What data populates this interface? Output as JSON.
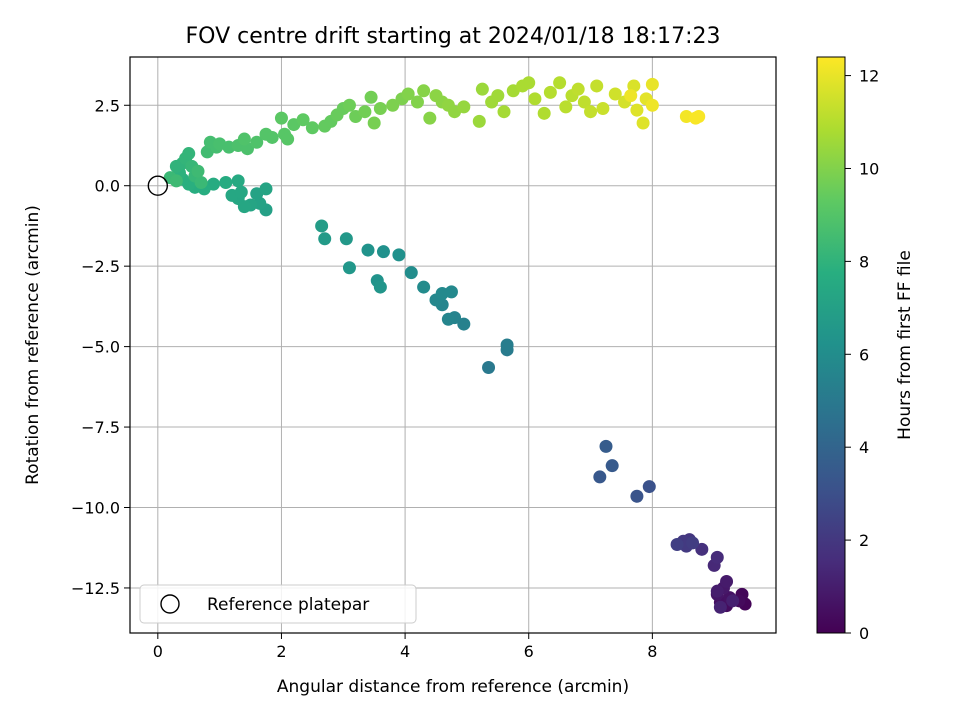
{
  "chart_data": {
    "type": "scatter",
    "title": "FOV centre drift starting at 2024/01/18 18:17:23",
    "xlabel": "Angular distance from reference (arcmin)",
    "ylabel": "Rotation from reference (arcmin)",
    "xlim": [
      -0.45,
      10.0
    ],
    "ylim": [
      -13.9,
      4.0
    ],
    "x_ticks": [
      0,
      2,
      4,
      6,
      8
    ],
    "y_ticks": [
      2.5,
      0.0,
      -2.5,
      -5.0,
      -7.5,
      -10.0,
      -12.5
    ],
    "x_tick_labels": [
      "0",
      "2",
      "4",
      "6",
      "8"
    ],
    "y_tick_labels": [
      "2.5",
      "0.0",
      "−2.5",
      "−5.0",
      "−7.5",
      "−10.0",
      "−12.5"
    ],
    "grid": true,
    "colormap": "viridis",
    "colorbar": {
      "label": "Hours from first FF file",
      "range": [
        0,
        12.4
      ],
      "ticks": [
        0,
        2,
        4,
        6,
        8,
        10,
        12
      ],
      "tick_labels": [
        "0",
        "2",
        "4",
        "6",
        "8",
        "10",
        "12"
      ]
    },
    "legend": {
      "placement": "lower-left",
      "entries": [
        {
          "label": "Reference platepar",
          "marker": "open-circle"
        }
      ]
    },
    "reference_point": {
      "x": 0,
      "y": 0
    },
    "points": [
      {
        "x": 9.5,
        "y": -13.0,
        "t": 0.1
      },
      {
        "x": 9.45,
        "y": -12.7,
        "t": 0.2
      },
      {
        "x": 9.4,
        "y": -12.9,
        "t": 0.3
      },
      {
        "x": 9.2,
        "y": -13.05,
        "t": 0.4
      },
      {
        "x": 9.1,
        "y": -12.95,
        "t": 0.5
      },
      {
        "x": 9.25,
        "y": -12.8,
        "t": 0.6
      },
      {
        "x": 9.05,
        "y": -12.7,
        "t": 0.7
      },
      {
        "x": 9.15,
        "y": -12.5,
        "t": 0.8
      },
      {
        "x": 9.2,
        "y": -12.3,
        "t": 0.9
      },
      {
        "x": 9.05,
        "y": -12.6,
        "t": 1.0
      },
      {
        "x": 9.3,
        "y": -12.9,
        "t": 1.1
      },
      {
        "x": 9.1,
        "y": -13.1,
        "t": 1.2
      },
      {
        "x": 9.0,
        "y": -11.8,
        "t": 1.4
      },
      {
        "x": 9.05,
        "y": -11.55,
        "t": 1.5
      },
      {
        "x": 8.8,
        "y": -11.3,
        "t": 1.7
      },
      {
        "x": 8.6,
        "y": -11.0,
        "t": 1.9
      },
      {
        "x": 8.5,
        "y": -11.05,
        "t": 2.0
      },
      {
        "x": 8.55,
        "y": -11.2,
        "t": 2.1
      },
      {
        "x": 8.65,
        "y": -11.1,
        "t": 2.2
      },
      {
        "x": 8.4,
        "y": -11.15,
        "t": 2.3
      },
      {
        "x": 7.95,
        "y": -9.35,
        "t": 3.1
      },
      {
        "x": 7.75,
        "y": -9.65,
        "t": 3.2
      },
      {
        "x": 7.15,
        "y": -9.05,
        "t": 3.4
      },
      {
        "x": 7.35,
        "y": -8.7,
        "t": 3.5
      },
      {
        "x": 7.25,
        "y": -8.1,
        "t": 3.6
      },
      {
        "x": 5.35,
        "y": -5.65,
        "t": 5.0
      },
      {
        "x": 5.65,
        "y": -5.1,
        "t": 5.1
      },
      {
        "x": 5.65,
        "y": -4.95,
        "t": 5.2
      },
      {
        "x": 4.95,
        "y": -4.3,
        "t": 5.4
      },
      {
        "x": 4.8,
        "y": -4.1,
        "t": 5.5
      },
      {
        "x": 4.7,
        "y": -4.15,
        "t": 5.6
      },
      {
        "x": 4.6,
        "y": -3.7,
        "t": 5.6
      },
      {
        "x": 4.5,
        "y": -3.55,
        "t": 5.7
      },
      {
        "x": 4.6,
        "y": -3.35,
        "t": 5.8
      },
      {
        "x": 4.75,
        "y": -3.3,
        "t": 5.8
      },
      {
        "x": 4.3,
        "y": -3.15,
        "t": 5.9
      },
      {
        "x": 4.1,
        "y": -2.7,
        "t": 6.0
      },
      {
        "x": 3.9,
        "y": -2.15,
        "t": 6.2
      },
      {
        "x": 3.65,
        "y": -2.05,
        "t": 6.2
      },
      {
        "x": 3.4,
        "y": -2.0,
        "t": 6.3
      },
      {
        "x": 3.55,
        "y": -2.95,
        "t": 6.3
      },
      {
        "x": 3.6,
        "y": -3.15,
        "t": 6.4
      },
      {
        "x": 3.1,
        "y": -2.55,
        "t": 6.5
      },
      {
        "x": 3.05,
        "y": -1.65,
        "t": 6.6
      },
      {
        "x": 2.7,
        "y": -1.65,
        "t": 6.7
      },
      {
        "x": 2.65,
        "y": -1.25,
        "t": 6.8
      },
      {
        "x": 1.75,
        "y": -0.75,
        "t": 7.0
      },
      {
        "x": 1.65,
        "y": -0.55,
        "t": 7.1
      },
      {
        "x": 1.6,
        "y": -0.25,
        "t": 7.1
      },
      {
        "x": 1.75,
        "y": -0.1,
        "t": 7.2
      },
      {
        "x": 1.5,
        "y": -0.6,
        "t": 7.2
      },
      {
        "x": 1.4,
        "y": -0.65,
        "t": 7.3
      },
      {
        "x": 1.3,
        "y": -0.4,
        "t": 7.3
      },
      {
        "x": 1.2,
        "y": -0.3,
        "t": 7.4
      },
      {
        "x": 1.35,
        "y": -0.2,
        "t": 7.4
      },
      {
        "x": 1.3,
        "y": 0.15,
        "t": 7.5
      },
      {
        "x": 1.1,
        "y": 0.1,
        "t": 7.6
      },
      {
        "x": 0.9,
        "y": 0.05,
        "t": 7.6
      },
      {
        "x": 0.75,
        "y": -0.1,
        "t": 7.7
      },
      {
        "x": 0.6,
        "y": -0.05,
        "t": 7.7
      },
      {
        "x": 0.5,
        "y": 0.05,
        "t": 7.8
      },
      {
        "x": 0.4,
        "y": 0.2,
        "t": 7.8
      },
      {
        "x": 0.35,
        "y": 0.4,
        "t": 7.9
      },
      {
        "x": 0.3,
        "y": 0.6,
        "t": 8.0
      },
      {
        "x": 0.4,
        "y": 0.7,
        "t": 8.0
      },
      {
        "x": 0.45,
        "y": 0.85,
        "t": 8.1
      },
      {
        "x": 0.5,
        "y": 1.0,
        "t": 8.1
      },
      {
        "x": 0.55,
        "y": 0.6,
        "t": 8.2
      },
      {
        "x": 0.6,
        "y": 0.3,
        "t": 8.2
      },
      {
        "x": 0.7,
        "y": 0.1,
        "t": 8.3
      },
      {
        "x": 0.2,
        "y": 0.25,
        "t": 8.3
      },
      {
        "x": 0.3,
        "y": 0.15,
        "t": 8.4
      },
      {
        "x": 0.65,
        "y": 0.45,
        "t": 8.4
      },
      {
        "x": 0.8,
        "y": 1.05,
        "t": 8.5
      },
      {
        "x": 0.95,
        "y": 1.2,
        "t": 8.6
      },
      {
        "x": 0.85,
        "y": 1.35,
        "t": 8.6
      },
      {
        "x": 1.0,
        "y": 1.3,
        "t": 8.7
      },
      {
        "x": 1.15,
        "y": 1.2,
        "t": 8.7
      },
      {
        "x": 1.3,
        "y": 1.25,
        "t": 8.8
      },
      {
        "x": 1.45,
        "y": 1.15,
        "t": 8.8
      },
      {
        "x": 1.4,
        "y": 1.45,
        "t": 8.9
      },
      {
        "x": 1.6,
        "y": 1.35,
        "t": 8.9
      },
      {
        "x": 1.75,
        "y": 1.6,
        "t": 9.0
      },
      {
        "x": 1.85,
        "y": 1.5,
        "t": 9.0
      },
      {
        "x": 2.05,
        "y": 1.6,
        "t": 9.1
      },
      {
        "x": 2.1,
        "y": 1.45,
        "t": 9.1
      },
      {
        "x": 2.0,
        "y": 2.1,
        "t": 9.2
      },
      {
        "x": 2.2,
        "y": 1.9,
        "t": 9.2
      },
      {
        "x": 2.35,
        "y": 2.05,
        "t": 9.3
      },
      {
        "x": 2.5,
        "y": 1.8,
        "t": 9.3
      },
      {
        "x": 2.7,
        "y": 1.85,
        "t": 9.4
      },
      {
        "x": 2.8,
        "y": 2.0,
        "t": 9.4
      },
      {
        "x": 2.9,
        "y": 2.2,
        "t": 9.5
      },
      {
        "x": 3.0,
        "y": 2.4,
        "t": 9.5
      },
      {
        "x": 3.1,
        "y": 2.5,
        "t": 9.6
      },
      {
        "x": 3.2,
        "y": 2.15,
        "t": 9.6
      },
      {
        "x": 3.35,
        "y": 2.3,
        "t": 9.7
      },
      {
        "x": 3.45,
        "y": 2.75,
        "t": 9.7
      },
      {
        "x": 3.5,
        "y": 1.95,
        "t": 9.8
      },
      {
        "x": 3.6,
        "y": 2.4,
        "t": 9.8
      },
      {
        "x": 3.8,
        "y": 2.5,
        "t": 9.9
      },
      {
        "x": 3.95,
        "y": 2.7,
        "t": 9.9
      },
      {
        "x": 4.05,
        "y": 2.85,
        "t": 10.0
      },
      {
        "x": 4.2,
        "y": 2.6,
        "t": 10.0
      },
      {
        "x": 4.3,
        "y": 2.95,
        "t": 10.1
      },
      {
        "x": 4.4,
        "y": 2.1,
        "t": 10.1
      },
      {
        "x": 4.5,
        "y": 2.8,
        "t": 10.2
      },
      {
        "x": 4.6,
        "y": 2.6,
        "t": 10.2
      },
      {
        "x": 4.7,
        "y": 2.5,
        "t": 10.3
      },
      {
        "x": 4.8,
        "y": 2.3,
        "t": 10.3
      },
      {
        "x": 4.95,
        "y": 2.45,
        "t": 10.4
      },
      {
        "x": 5.2,
        "y": 2.0,
        "t": 10.5
      },
      {
        "x": 5.25,
        "y": 3.0,
        "t": 10.5
      },
      {
        "x": 5.4,
        "y": 2.6,
        "t": 10.6
      },
      {
        "x": 5.5,
        "y": 2.8,
        "t": 10.6
      },
      {
        "x": 5.6,
        "y": 2.3,
        "t": 10.7
      },
      {
        "x": 5.75,
        "y": 2.95,
        "t": 10.7
      },
      {
        "x": 5.9,
        "y": 3.1,
        "t": 10.8
      },
      {
        "x": 6.0,
        "y": 3.2,
        "t": 10.8
      },
      {
        "x": 6.1,
        "y": 2.7,
        "t": 10.9
      },
      {
        "x": 6.25,
        "y": 2.25,
        "t": 10.9
      },
      {
        "x": 6.35,
        "y": 2.9,
        "t": 11.0
      },
      {
        "x": 6.5,
        "y": 3.2,
        "t": 11.0
      },
      {
        "x": 6.6,
        "y": 2.45,
        "t": 11.1
      },
      {
        "x": 6.7,
        "y": 2.8,
        "t": 11.1
      },
      {
        "x": 6.8,
        "y": 3.0,
        "t": 11.2
      },
      {
        "x": 6.9,
        "y": 2.6,
        "t": 11.2
      },
      {
        "x": 7.0,
        "y": 2.3,
        "t": 11.3
      },
      {
        "x": 7.1,
        "y": 3.1,
        "t": 11.3
      },
      {
        "x": 7.2,
        "y": 2.4,
        "t": 11.4
      },
      {
        "x": 7.4,
        "y": 2.85,
        "t": 11.5
      },
      {
        "x": 7.55,
        "y": 2.6,
        "t": 11.6
      },
      {
        "x": 7.7,
        "y": 3.1,
        "t": 11.7
      },
      {
        "x": 7.75,
        "y": 2.35,
        "t": 11.8
      },
      {
        "x": 7.85,
        "y": 1.95,
        "t": 11.8
      },
      {
        "x": 7.9,
        "y": 2.7,
        "t": 11.9
      },
      {
        "x": 8.0,
        "y": 3.15,
        "t": 12.0
      },
      {
        "x": 8.0,
        "y": 2.5,
        "t": 12.1
      },
      {
        "x": 7.65,
        "y": 2.8,
        "t": 12.1
      },
      {
        "x": 8.55,
        "y": 2.15,
        "t": 12.2
      },
      {
        "x": 8.7,
        "y": 2.1,
        "t": 12.3
      },
      {
        "x": 8.75,
        "y": 2.15,
        "t": 12.3
      }
    ]
  }
}
